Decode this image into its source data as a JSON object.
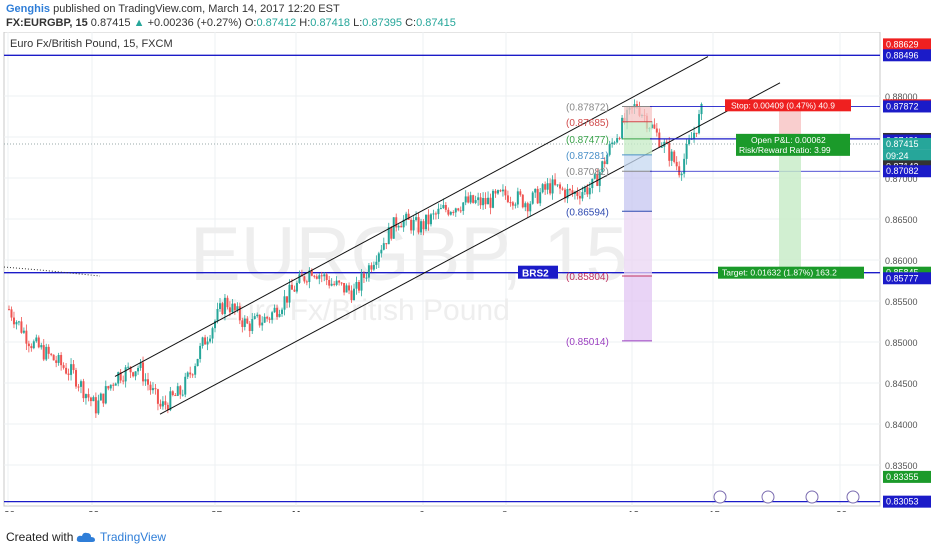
{
  "header": {
    "author": "Genghis",
    "published": "published on TradingView.com, March 14, 2017 12:20 EST",
    "symbol": "FX:EURGBP, 15",
    "last": "0.87415",
    "change_arrow": "▲",
    "change": "+0.00236 (+0.27%)",
    "o_label": "O:",
    "o_value": "0.87412",
    "h_label": "H:",
    "h_value": "0.87418",
    "l_label": "L:",
    "l_value": "0.87395",
    "c_label": "C:",
    "c_value": "0.87415"
  },
  "footer": {
    "created_with": "Created with",
    "brand": "TradingView",
    "logo_icon": "tradingview-cloud-icon"
  },
  "colors": {
    "up": "#26a69a",
    "down": "#ef5350",
    "level": "#1b1bc8",
    "blue_text": "#2f7ed8"
  },
  "chart_data": {
    "type": "candlestick",
    "title": "Euro Fx/British Pound, 15, FXCM",
    "watermark_symbol": "EURGBP, 15",
    "watermark_name": "Euro Fx/British Pound",
    "ylim": [
      0.83,
      0.8878
    ],
    "y_ticks": [
      "0.88000",
      "0.87500",
      "0.87000",
      "0.86500",
      "0.86000",
      "0.85500",
      "0.85000",
      "0.84500",
      "0.84000",
      "0.83500"
    ],
    "x_ticks": [
      "20",
      "22",
      "27",
      "Mar",
      "6",
      "8",
      "13",
      "15",
      "20"
    ],
    "grid": true,
    "price_path": [
      [
        0.854,
        0.858
      ],
      [
        0.85,
        0.852
      ],
      [
        0.848,
        0.849
      ],
      [
        0.846,
        0.844
      ],
      [
        0.842,
        0.84
      ],
      [
        0.846,
        0.849
      ],
      [
        0.847,
        0.846
      ],
      [
        0.842,
        0.843
      ],
      [
        0.844,
        0.847
      ],
      [
        0.85,
        0.853
      ],
      [
        0.855,
        0.854
      ],
      [
        0.852,
        0.855
      ],
      [
        0.853,
        0.851
      ],
      [
        0.856,
        0.858
      ],
      [
        0.859,
        0.856
      ],
      [
        0.857,
        0.854
      ],
      [
        0.856,
        0.858
      ],
      [
        0.861,
        0.864
      ],
      [
        0.865,
        0.866
      ],
      [
        0.864,
        0.867
      ],
      [
        0.866,
        0.868
      ],
      [
        0.867,
        0.866
      ],
      [
        0.867,
        0.869
      ],
      [
        0.868,
        0.866
      ],
      [
        0.867,
        0.868
      ],
      [
        0.869,
        0.871
      ],
      [
        0.868,
        0.867
      ],
      [
        0.869,
        0.872
      ],
      [
        0.875,
        0.877
      ],
      [
        0.879,
        0.878
      ],
      [
        0.875,
        0.871
      ],
      [
        0.871,
        0.873
      ],
      [
        0.878,
        0.874
      ]
    ],
    "horizontal_levels": [
      "0.88496",
      "0.85845",
      "0.83053"
    ],
    "level_label": "BRS2",
    "fib_levels": [
      {
        "label": "(0.87872)",
        "color": "#888888"
      },
      {
        "label": "(0.87685)",
        "color": "#d04a4a"
      },
      {
        "label": "(0.87477)",
        "color": "#3aa34a"
      },
      {
        "label": "(0.87281)",
        "color": "#4a90c8"
      },
      {
        "label": "(0.87082)",
        "color": "#888888"
      },
      {
        "label": "(0.86594)",
        "color": "#2f4ab0"
      },
      {
        "label": "(0.85804)",
        "color": "#c03060"
      },
      {
        "label": "(0.85014)",
        "color": "#9b40c0"
      }
    ],
    "position": {
      "stop_label": "Stop: 0.00409 (0.47%) 40.9",
      "pl_label": "Open P&L: 0.00062",
      "rr_label": "Risk/Reward Ratio: 3.99",
      "target_label": "Target: 0.01632 (1.87%) 163.2",
      "entry": 0.87477,
      "stop": 0.87886,
      "target": 0.85845
    },
    "axis_labels": [
      {
        "text": "0.88629",
        "bg": "#ef2020",
        "fg": "#ffffff"
      },
      {
        "text": "0.88496",
        "bg": "#1b1bc8",
        "fg": "#ffffff"
      },
      {
        "text": "0.87886",
        "bg": "#ef2020",
        "fg": "#ffffff"
      },
      {
        "text": "0.87872",
        "bg": "#1b1bc8",
        "fg": "#ffffff"
      },
      {
        "text": "0.87477",
        "bg": "#333333",
        "fg": "#ffffff"
      },
      {
        "text": "0.87481",
        "bg": "#1b1bc8",
        "fg": "#ffffff"
      },
      {
        "text": "0.87415",
        "bg": "#26a69a",
        "fg": "#ffffff"
      },
      {
        "text": "09:24",
        "bg": "#26a69a",
        "fg": "#ffffff"
      },
      {
        "text": "0.87142",
        "bg": "#333333",
        "fg": "#ffffff"
      },
      {
        "text": "0.87082",
        "bg": "#1b1bc8",
        "fg": "#ffffff"
      },
      {
        "text": "0.85845",
        "bg": "#1b9a2a",
        "fg": "#ffffff"
      },
      {
        "text": "0.85777",
        "bg": "#1b1bc8",
        "fg": "#ffffff"
      },
      {
        "text": "0.83355",
        "bg": "#1b9a2a",
        "fg": "#ffffff"
      },
      {
        "text": "0.83053",
        "bg": "#1b1bc8",
        "fg": "#ffffff"
      }
    ]
  }
}
